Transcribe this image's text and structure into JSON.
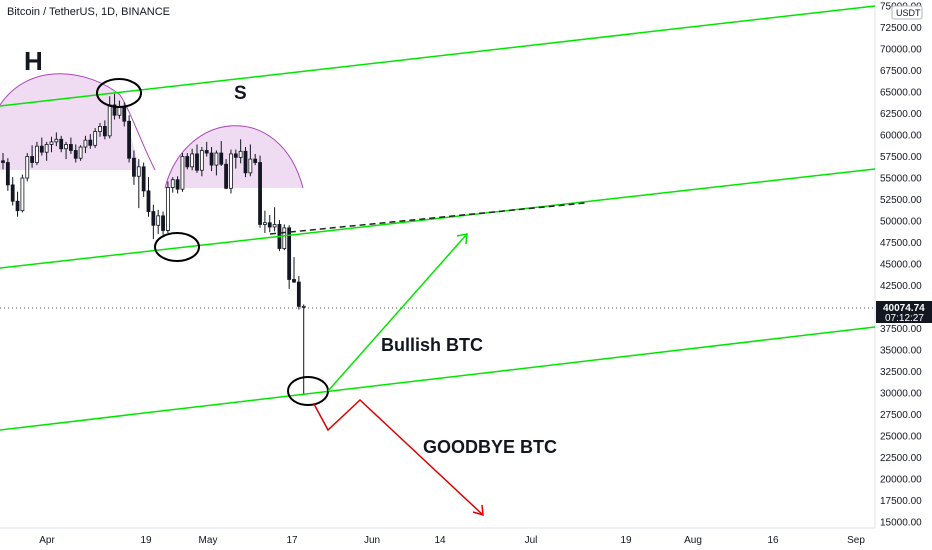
{
  "chart_data": {
    "type": "candlestick",
    "title": "Bitcoin / TetherUS, 1D, BINANCE",
    "currency": "USDT",
    "ylim": [
      14500,
      76500
    ],
    "y_ticks": [
      "15000.00",
      "17500.00",
      "20000.00",
      "22500.00",
      "25000.00",
      "27500.00",
      "30000.00",
      "32500.00",
      "35000.00",
      "37500.00",
      "40000.00",
      "42500.00",
      "45000.00",
      "47500.00",
      "50000.00",
      "52500.00",
      "55000.00",
      "57500.00",
      "60000.00",
      "62500.00",
      "65000.00",
      "67500.00",
      "70000.00",
      "72500.00",
      "75000.00"
    ],
    "x_ticks": [
      "Apr",
      "19",
      "May",
      "17",
      "Jun",
      "14",
      "Jul",
      "19",
      "Aug",
      "16",
      "Sep"
    ],
    "current_price": "40074.74",
    "countdown": "07:12:27",
    "annotations": {
      "head": "H",
      "shoulder": "S",
      "bullish": "Bullish BTC",
      "bearish": "GOODBYE BTC"
    },
    "candles": [
      [
        0,
        57000,
        57900,
        56000,
        56800
      ],
      [
        1,
        56800,
        57300,
        53500,
        54200
      ],
      [
        2,
        54200,
        55100,
        51800,
        52300
      ],
      [
        3,
        52300,
        53400,
        50500,
        51200
      ],
      [
        4,
        51200,
        55400,
        51000,
        55000
      ],
      [
        5,
        55000,
        57900,
        54600,
        57500
      ],
      [
        6,
        57500,
        58800,
        56200,
        56800
      ],
      [
        7,
        56800,
        59200,
        56500,
        58700
      ],
      [
        8,
        58700,
        59700,
        57600,
        58000
      ],
      [
        9,
        58000,
        59200,
        57000,
        58900
      ],
      [
        10,
        58900,
        59800,
        58000,
        59200
      ],
      [
        11,
        59200,
        60300,
        58700,
        59500
      ],
      [
        12,
        59500,
        59900,
        58000,
        58400
      ],
      [
        13,
        58400,
        59200,
        57200,
        58900
      ],
      [
        14,
        58900,
        59700,
        57800,
        58200
      ],
      [
        15,
        58200,
        58900,
        56800,
        57300
      ],
      [
        16,
        57300,
        58800,
        57000,
        58600
      ],
      [
        17,
        58600,
        59900,
        57900,
        59400
      ],
      [
        18,
        59400,
        60100,
        58400,
        58800
      ],
      [
        19,
        58800,
        60800,
        58500,
        60400
      ],
      [
        20,
        60400,
        61400,
        59800,
        61000
      ],
      [
        21,
        61000,
        61700,
        59500,
        59900
      ],
      [
        22,
        59900,
        64500,
        59600,
        63500
      ],
      [
        23,
        63500,
        64800,
        61800,
        62300
      ],
      [
        24,
        62300,
        64000,
        61900,
        63200
      ],
      [
        25,
        63200,
        63800,
        61000,
        61600
      ],
      [
        26,
        61600,
        62300,
        56800,
        57300
      ],
      [
        27,
        57300,
        58200,
        54200,
        55200
      ],
      [
        28,
        55200,
        57200,
        51500,
        56300
      ],
      [
        29,
        56300,
        56800,
        52800,
        53500
      ],
      [
        30,
        53500,
        55100,
        50500,
        51100
      ],
      [
        31,
        51100,
        51900,
        47900,
        49500
      ],
      [
        32,
        49500,
        51300,
        48500,
        50600
      ],
      [
        33,
        50600,
        51100,
        48400,
        48900
      ],
      [
        34,
        48900,
        54600,
        48600,
        53900
      ],
      [
        35,
        53900,
        55100,
        53300,
        54800
      ],
      [
        36,
        54800,
        55200,
        53200,
        53700
      ],
      [
        37,
        53700,
        57900,
        53400,
        57500
      ],
      [
        38,
        57500,
        57900,
        56000,
        56300
      ],
      [
        39,
        56300,
        58400,
        55900,
        57800
      ],
      [
        40,
        57800,
        58900,
        55600,
        55900
      ],
      [
        41,
        55900,
        58600,
        55200,
        58200
      ],
      [
        42,
        58200,
        59200,
        57500,
        57900
      ],
      [
        43,
        57900,
        58600,
        55800,
        56500
      ],
      [
        44,
        56500,
        58200,
        55300,
        57900
      ],
      [
        45,
        57900,
        59300,
        56400,
        56600
      ],
      [
        46,
        56600,
        57200,
        53700,
        53800
      ],
      [
        47,
        53800,
        58300,
        53200,
        57800
      ],
      [
        48,
        57800,
        58300,
        56100,
        57400
      ],
      [
        49,
        57400,
        59500,
        56700,
        58100
      ],
      [
        50,
        58100,
        58600,
        55100,
        55600
      ],
      [
        51,
        55600,
        58900,
        55200,
        57200
      ],
      [
        52,
        57200,
        57800,
        56500,
        56800
      ],
      [
        53,
        56800,
        57600,
        49200,
        49600
      ],
      [
        54,
        49600,
        51200,
        48600,
        49800
      ],
      [
        55,
        49800,
        50700,
        48700,
        49300
      ],
      [
        56,
        49300,
        51600,
        48800,
        49600
      ],
      [
        57,
        49600,
        50100,
        46500,
        46800
      ],
      [
        58,
        46800,
        49600,
        46600,
        49200
      ],
      [
        59,
        49200,
        49500,
        42100,
        43200
      ],
      [
        60,
        43200,
        45800,
        42800,
        42900
      ],
      [
        61,
        42900,
        43600,
        39700,
        40074
      ],
      [
        62,
        40074,
        40300,
        29800,
        40074
      ]
    ]
  }
}
